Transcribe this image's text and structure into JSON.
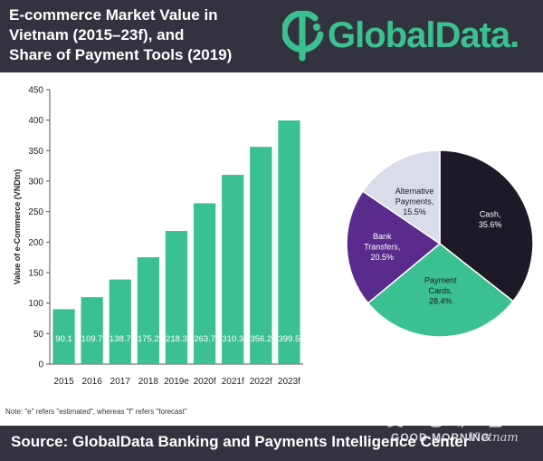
{
  "header": {
    "title_lines": [
      "E-commerce Market Value in",
      "Vietnam (2015–23f), and",
      "Share of Payment Tools (2019)"
    ],
    "logo_text": "GlobalData."
  },
  "chart_data": [
    {
      "type": "bar",
      "categories": [
        "2015",
        "2016",
        "2017",
        "2018",
        "2019e",
        "2020f",
        "2021f",
        "2022f",
        "2023f"
      ],
      "values": [
        90.1,
        109.7,
        138.7,
        175.2,
        218.3,
        263.7,
        310.3,
        356.2,
        399.5
      ],
      "value_labels": [
        "90.1",
        "109.7",
        "138.7",
        "175.2",
        "218.3",
        "263.7",
        "310.3",
        "356.2",
        "399.5"
      ],
      "ylabel": "Value of e-Commerce (VNDtn)",
      "yticks": [
        0,
        50,
        100,
        150,
        200,
        250,
        300,
        350,
        400,
        450
      ],
      "ylim": [
        0,
        450
      ],
      "color": "#3bc092",
      "grid": false
    },
    {
      "type": "pie",
      "slices": [
        {
          "name": "Cash",
          "value": 35.6,
          "label_lines": [
            "Cash,",
            "35.6%"
          ],
          "color": "#1d1926",
          "text_color": "#ffffff"
        },
        {
          "name": "Payment Cards",
          "value": 28.4,
          "label_lines": [
            "Payment",
            "Cards,",
            "28.4%"
          ],
          "color": "#3bc092",
          "text_color": "#1d1926"
        },
        {
          "name": "Bank Transfers",
          "value": 20.5,
          "label_lines": [
            "Bank",
            "Transfers,",
            "20.5%"
          ],
          "color": "#5a2a8c",
          "text_color": "#ffffff"
        },
        {
          "name": "Alternative Payments",
          "value": 15.5,
          "label_lines": [
            "Alternative",
            "Payments,",
            "15.5%"
          ],
          "color": "#d8dde9",
          "text_color": "#1d1926"
        }
      ]
    }
  ],
  "note": "Note: \"e\" refers \"estimated\", whereas \"f\" refers \"forecast\"",
  "footer": {
    "source": "Source: GlobalData Banking and Payments Intelligence Center"
  },
  "watermark": {
    "korean": "굿모닝베트남",
    "line": "GOOD MORNING",
    "script": "Vietnam"
  }
}
